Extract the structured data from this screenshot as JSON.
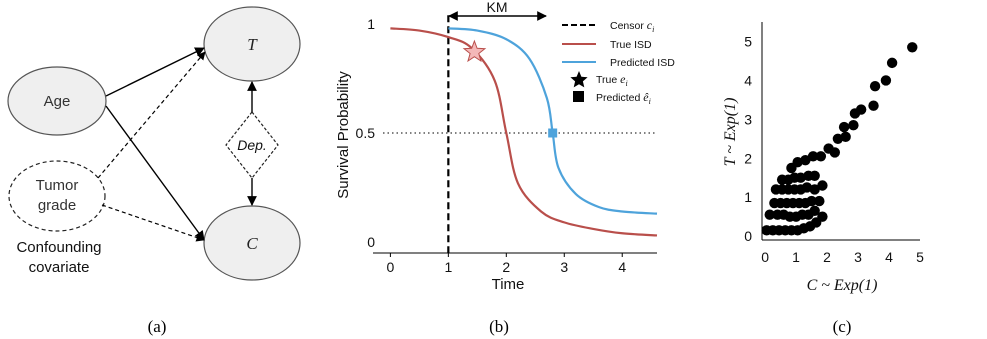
{
  "panel_a": {
    "caption": "(a)",
    "nodes": {
      "age": "Age",
      "tumor_line1": "Tumor",
      "tumor_line2": "grade",
      "t": "T",
      "c": "C",
      "dep": "Dep."
    },
    "confounding_line1": "Confounding",
    "confounding_line2": "covariate"
  },
  "panel_b": {
    "caption": "(b)",
    "km_label": "KM",
    "ylabel": "Survival Probability",
    "xlabel": "Time",
    "x_ticks": [
      "0",
      "1",
      "2",
      "3",
      "4"
    ],
    "y_ticks": [
      "0",
      "0.5",
      "1"
    ],
    "legend": {
      "censor": "Censor",
      "censor_math": "c",
      "censor_sub": "i",
      "true_isd": "True ISD",
      "pred_isd": "Predicted ISD",
      "true_e": "True",
      "true_e_math": "e",
      "true_e_sub": "i",
      "pred_e": "Predicted",
      "pred_e_math": "ê",
      "pred_e_sub": "i"
    },
    "colors": {
      "true": "#b94f4b",
      "pred": "#4ea3db",
      "star": "#f4b8b8"
    },
    "chart_data": {
      "type": "line",
      "xlim": [
        -0.3,
        4.6
      ],
      "ylim": [
        0,
        1
      ],
      "censor_time": 1.0,
      "reference_line_y": 0.5,
      "true_event_time": 1.45,
      "predicted_event_time": 2.8,
      "series": [
        {
          "name": "True ISD",
          "x": [
            0.0,
            0.5,
            1.0,
            1.4,
            1.8,
            2.0,
            2.2,
            2.6,
            3.0,
            3.5,
            4.0,
            4.6
          ],
          "y": [
            0.98,
            0.97,
            0.94,
            0.89,
            0.74,
            0.5,
            0.27,
            0.14,
            0.09,
            0.06,
            0.04,
            0.03
          ]
        },
        {
          "name": "Predicted ISD",
          "x": [
            1.0,
            1.5,
            2.0,
            2.4,
            2.7,
            2.8,
            2.9,
            3.2,
            3.6,
            4.0,
            4.6
          ],
          "y": [
            0.98,
            0.97,
            0.93,
            0.84,
            0.66,
            0.5,
            0.34,
            0.22,
            0.16,
            0.14,
            0.13
          ]
        }
      ]
    }
  },
  "panel_c": {
    "caption": "(c)",
    "xlabel": "C ~ Exp(1)",
    "ylabel": "T ~ Exp(1)",
    "x_ticks": [
      "0",
      "1",
      "2",
      "3",
      "4",
      "5"
    ],
    "y_ticks": [
      "0",
      "1",
      "2",
      "3",
      "4",
      "5"
    ],
    "chart_data": {
      "type": "scatter",
      "xlim": [
        -0.1,
        5.0
      ],
      "ylim": [
        -0.1,
        5.5
      ],
      "x": [
        0.05,
        0.25,
        0.45,
        0.65,
        0.85,
        1.05,
        1.25,
        1.45,
        1.65,
        1.85,
        0.15,
        0.4,
        0.6,
        0.8,
        1.0,
        1.2,
        1.4,
        1.6,
        0.3,
        0.5,
        0.7,
        0.9,
        1.1,
        1.3,
        1.5,
        1.75,
        0.35,
        0.55,
        0.75,
        0.95,
        1.15,
        1.35,
        1.6,
        0.55,
        0.75,
        0.95,
        1.15,
        1.4,
        1.6,
        1.85,
        0.85,
        1.05,
        1.3,
        1.55,
        1.8,
        2.05,
        2.25,
        2.35,
        2.6,
        2.55,
        2.85,
        2.9,
        3.1,
        3.5,
        3.55,
        3.9,
        4.1,
        4.75
      ],
      "y": [
        0.15,
        0.15,
        0.15,
        0.15,
        0.15,
        0.15,
        0.2,
        0.25,
        0.35,
        0.5,
        0.55,
        0.55,
        0.55,
        0.5,
        0.5,
        0.55,
        0.55,
        0.65,
        0.85,
        0.85,
        0.85,
        0.85,
        0.85,
        0.85,
        0.9,
        0.9,
        1.2,
        1.2,
        1.2,
        1.2,
        1.2,
        1.25,
        1.2,
        1.45,
        1.45,
        1.5,
        1.5,
        1.55,
        1.55,
        1.3,
        1.75,
        1.9,
        1.95,
        2.05,
        2.05,
        2.25,
        2.15,
        2.5,
        2.55,
        2.8,
        2.85,
        3.15,
        3.25,
        3.35,
        3.85,
        4.0,
        4.45,
        4.85
      ]
    }
  }
}
